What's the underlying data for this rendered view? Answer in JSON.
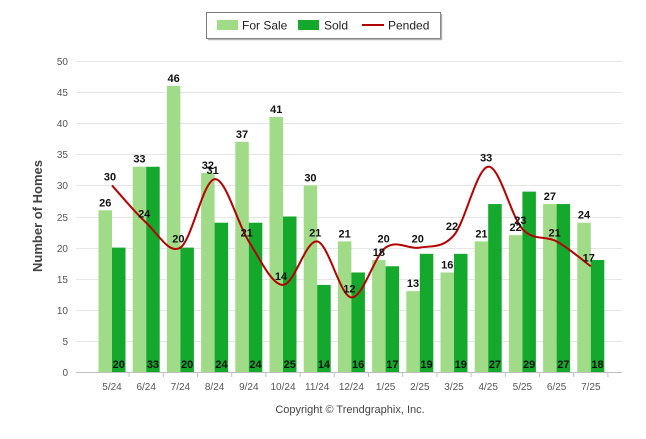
{
  "colors": {
    "for_sale": "#a0dc88",
    "sold": "#14a82c",
    "pended": "#b40000",
    "grid": "#e6e6e6",
    "axis_text": "#555555"
  },
  "chart_data": {
    "type": "bar",
    "categories": [
      "5/24",
      "6/24",
      "7/24",
      "8/24",
      "9/24",
      "10/24",
      "11/24",
      "12/24",
      "1/25",
      "2/25",
      "3/25",
      "4/25",
      "5/25",
      "6/25",
      "7/25"
    ],
    "series": [
      {
        "name": "For Sale",
        "type": "bar",
        "values": [
          26,
          33,
          46,
          32,
          37,
          41,
          30,
          21,
          18,
          13,
          16,
          21,
          22,
          27,
          24
        ]
      },
      {
        "name": "Sold",
        "type": "bar",
        "values": [
          20,
          33,
          20,
          24,
          24,
          25,
          14,
          16,
          17,
          19,
          19,
          27,
          29,
          27,
          18
        ]
      },
      {
        "name": "Pended",
        "type": "line",
        "values": [
          30,
          24,
          20,
          31,
          21,
          14,
          21,
          12,
          20,
          20,
          22,
          33,
          23,
          21,
          17
        ]
      }
    ],
    "ylabel": "Number of Homes",
    "xlabel": "",
    "ylim": [
      0,
      50
    ],
    "yticks": [
      0,
      5,
      10,
      15,
      20,
      25,
      30,
      35,
      40,
      45,
      50
    ],
    "grid": true,
    "legend": "top-center",
    "footer": "Copyright © Trendgraphix, Inc."
  }
}
